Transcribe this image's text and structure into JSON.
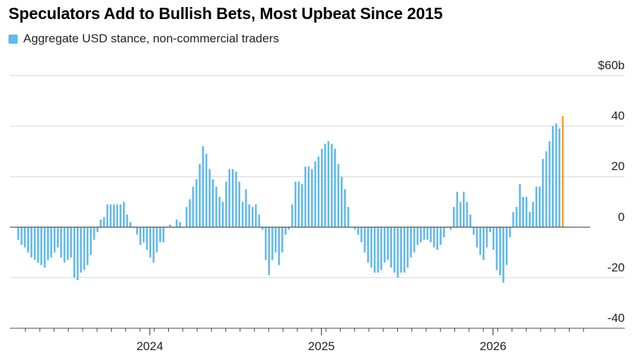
{
  "title": "Speculators Add to Bullish Bets, Most Upbeat Since 2015",
  "legend": {
    "label": "Aggregate USD stance, non-commercial traders",
    "color": "#60b8ee"
  },
  "colors": {
    "bar": "#60b8ee",
    "latest": "#f5a03a",
    "grid": "#d4d4d4",
    "axis": "#444444"
  },
  "chart_data": {
    "type": "bar",
    "title": "Speculators Add to Bullish Bets, Most Upbeat Since 2015",
    "series": [
      {
        "name": "Aggregate USD stance, non-commercial traders"
      }
    ],
    "ylabel": "",
    "ylim": [
      -40,
      60
    ],
    "y_ticks": [
      -40,
      -20,
      0,
      20,
      40,
      60
    ],
    "y_tick_labels": [
      "-40",
      "-20",
      "0",
      "20",
      "40",
      "$60b"
    ],
    "x_ticks": [
      {
        "label": "2024",
        "week": 40
      },
      {
        "label": "2025",
        "week": 92
      },
      {
        "label": "2026",
        "week": 144
      }
    ],
    "values": [
      -5,
      -7,
      -8,
      -10,
      -12,
      -13,
      -14,
      -15,
      -16,
      -13,
      -12,
      -10,
      -8,
      -12,
      -14,
      -13,
      -12,
      -20,
      -21,
      -18,
      -17,
      -15,
      -11,
      -5,
      -2,
      3,
      4,
      9,
      9,
      9,
      9,
      9,
      10,
      5,
      2,
      0,
      -3,
      -7,
      -6,
      -9,
      -12,
      -14,
      -10,
      -6,
      -6,
      0,
      1,
      0,
      3,
      2,
      0,
      8,
      11,
      16,
      19,
      25,
      32,
      29,
      23,
      19,
      16,
      12,
      10,
      18,
      23,
      23,
      22,
      18,
      10,
      15,
      9,
      8,
      9,
      5,
      -1,
      -13,
      -19,
      -13,
      -10,
      -15,
      -10,
      -3,
      -1,
      9,
      18,
      18,
      17,
      24,
      24,
      23,
      26,
      28,
      31,
      33,
      34,
      33,
      31,
      25,
      20,
      15,
      8,
      0,
      -1,
      -3,
      -6,
      -10,
      -14,
      -16,
      -18,
      -18,
      -17,
      -14,
      -13,
      -16,
      -18,
      -20,
      -18,
      -18,
      -16,
      -12,
      -10,
      -7,
      -6,
      -5,
      -5,
      -6,
      -8,
      -9,
      -7,
      -4,
      0,
      -1,
      8,
      14,
      10,
      14,
      10,
      5,
      -3,
      -8,
      -11,
      -13,
      -8,
      -2,
      -9,
      -17,
      -19,
      -22,
      -15,
      -4,
      6,
      8,
      17,
      12,
      12,
      6,
      10,
      16,
      16,
      27,
      30,
      34,
      40,
      41,
      39,
      44
    ]
  }
}
